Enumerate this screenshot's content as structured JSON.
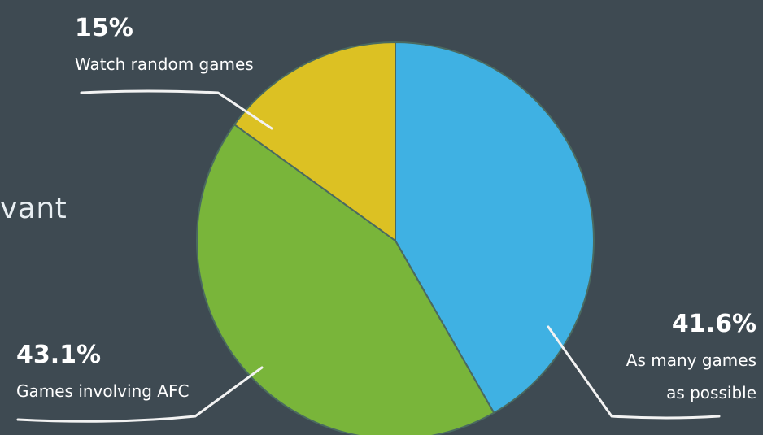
{
  "background_text": "vant",
  "colors": {
    "background": "#3e4a52",
    "blue": "#3fb1e3",
    "green": "#79b53a",
    "yellow": "#dcc123"
  },
  "chart_data": {
    "type": "pie",
    "title": "",
    "slices": [
      {
        "label": "As many games as possible",
        "label_lines": [
          "As many games",
          "as possible"
        ],
        "value": 41.6,
        "percent_label": "41.6%",
        "color": "#3fb1e3"
      },
      {
        "label": "Games involving AFC",
        "label_lines": [
          "Games involving AFC"
        ],
        "value": 43.1,
        "percent_label": "43.1%",
        "color": "#79b53a"
      },
      {
        "label": "Watch random games",
        "label_lines": [
          "Watch random games"
        ],
        "value": 15.0,
        "percent_label": "15%",
        "color": "#dcc123"
      }
    ]
  }
}
